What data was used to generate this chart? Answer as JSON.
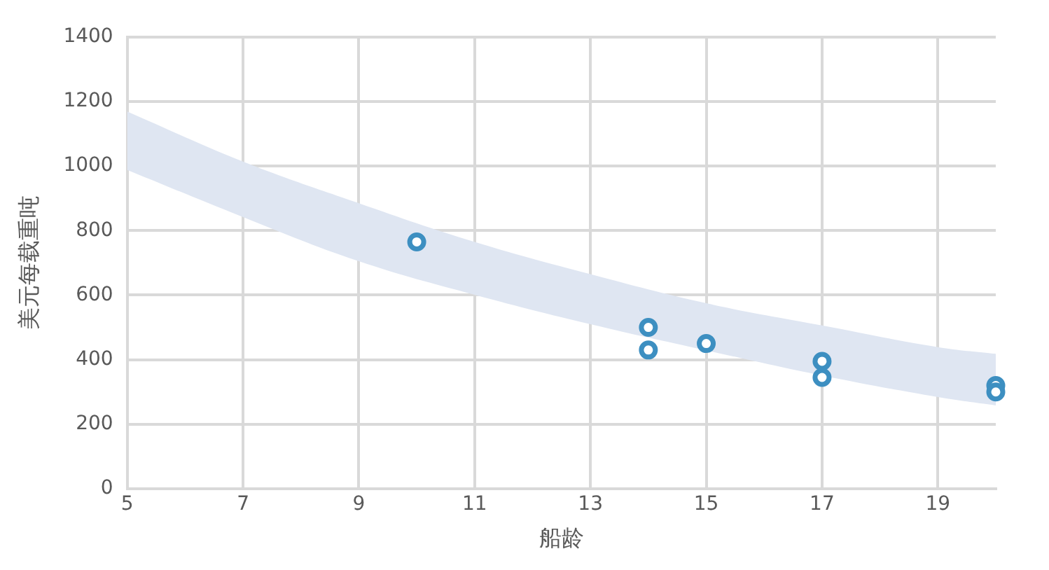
{
  "chart_data": {
    "type": "scatter",
    "xlabel": "船龄",
    "ylabel": "美元每载重吨",
    "xlim": [
      5,
      20
    ],
    "xticks": [
      5,
      7,
      9,
      11,
      13,
      15,
      17,
      19
    ],
    "ylim": [
      0,
      1400
    ],
    "yticks": [
      0,
      200,
      400,
      600,
      800,
      1000,
      1200,
      1400
    ],
    "grid": true,
    "legend": false,
    "marker": "circle",
    "series": [
      {
        "type": "area",
        "color": "#dfe6f2",
        "x": [
          5,
          7,
          9,
          11,
          13,
          15,
          17,
          19,
          20
        ],
        "values": [
          null,
          null,
          null,
          null,
          null,
          null,
          null,
          null,
          null
        ],
        "lower": [
          988,
          842,
          705,
          601,
          510,
          429,
          351,
          284,
          258
        ],
        "upper": [
          1169,
          1014,
          885,
          765,
          665,
          575,
          506,
          439,
          418
        ]
      },
      {
        "type": "scatter",
        "color": "#3d8fc1",
        "x": [
          10,
          14,
          14,
          15,
          17,
          17,
          20,
          20
        ],
        "values": [
          765,
          500,
          430,
          450,
          395,
          345,
          320,
          300
        ]
      }
    ]
  }
}
